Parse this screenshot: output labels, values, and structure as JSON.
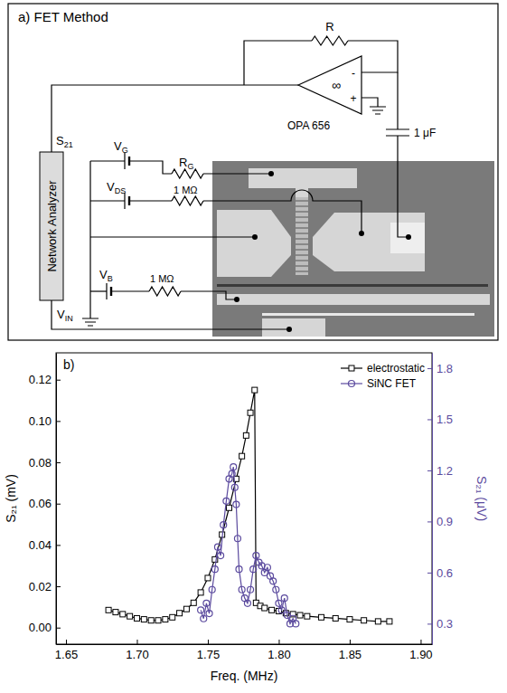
{
  "diagram": {
    "title": "a) FET Method",
    "instrument": "Network Analyzer",
    "amplifier": "OPA 656",
    "feedback_resistor": "R",
    "capacitor": "1 μF",
    "infinity": "∞",
    "inverting_input": "-",
    "noninverting_input": "+",
    "output_label": {
      "main": "S",
      "sub": "21"
    },
    "input_label": {
      "main": "V",
      "sub": "IN"
    },
    "gate_source": {
      "main": "V",
      "sub": "G"
    },
    "gate_resistor": {
      "main": "R",
      "sub": "G"
    },
    "drain_source": {
      "main": "V",
      "sub": "DS"
    },
    "drain_resistor": "1 MΩ",
    "bias_source": {
      "main": "V",
      "sub": "B"
    },
    "bias_resistor": "1 MΩ"
  },
  "chart_data": {
    "type": "line",
    "title": "b)",
    "x_label": "Freq. (MHz)",
    "y_label": "S₂₁ (mV)",
    "y2_label": "S₂₁ (μV)",
    "xlim": [
      1.643,
      1.908
    ],
    "xticks": [
      1.65,
      {
        "value": 1.7,
        "label": "1.70"
      },
      1.75,
      {
        "value": 1.8,
        "label": "1.80"
      },
      1.85,
      {
        "value": 1.9,
        "label": "1.90"
      }
    ],
    "ylim": [
      -0.008,
      0.133
    ],
    "yticks": [
      {
        "value": 0,
        "label": "0.00"
      },
      0.02,
      0.04,
      0.06,
      0.08,
      {
        "value": 0.1,
        "label": "0.10"
      },
      0.12
    ],
    "y2lim": [
      0.18,
      1.89
    ],
    "y2ticks": [
      0.3,
      0.6,
      0.9,
      1.2,
      1.5,
      1.8
    ],
    "legend": "upper right",
    "series": [
      {
        "name": "electrostatic",
        "color": "#000000",
        "marker": "square",
        "x": [
          1.68,
          1.685,
          1.69,
          1.695,
          1.7,
          1.705,
          1.71,
          1.715,
          1.72,
          1.725,
          1.73,
          1.735,
          1.74,
          1.745,
          1.75,
          1.755,
          1.76,
          1.765,
          1.77,
          1.774,
          1.777,
          1.78,
          1.783,
          1.784,
          1.787,
          1.79,
          1.795,
          1.8,
          1.805,
          1.81,
          1.815,
          1.82,
          1.83,
          1.84,
          1.85,
          1.86,
          1.87,
          1.878
        ],
        "values": [
          0.0085,
          0.0075,
          0.0065,
          0.0055,
          0.0045,
          0.004,
          0.0035,
          0.0035,
          0.004,
          0.005,
          0.007,
          0.009,
          0.012,
          0.017,
          0.024,
          0.033,
          0.045,
          0.058,
          0.072,
          0.083,
          0.093,
          0.104,
          0.115,
          0.012,
          0.0105,
          0.0095,
          0.0085,
          0.008,
          0.007,
          0.0065,
          0.006,
          0.0055,
          0.005,
          0.0045,
          0.004,
          0.0035,
          0.003,
          0.003
        ]
      },
      {
        "name": "SiNC FET",
        "color": "#5b4a9e",
        "marker": "circle",
        "axis": "y2",
        "x": [
          1.745,
          1.747,
          1.749,
          1.751,
          1.753,
          1.755,
          1.757,
          1.759,
          1.761,
          1.763,
          1.765,
          1.767,
          1.768,
          1.769,
          1.77,
          1.771,
          1.772,
          1.774,
          1.776,
          1.778,
          1.78,
          1.782,
          1.784,
          1.786,
          1.788,
          1.79,
          1.792,
          1.794,
          1.796,
          1.798,
          1.8,
          1.802,
          1.804,
          1.806,
          1.808,
          1.81,
          1.812
        ],
        "values": [
          0.38,
          0.33,
          0.42,
          0.36,
          0.5,
          0.62,
          0.75,
          0.7,
          0.88,
          1.02,
          1.15,
          1.18,
          1.22,
          1.1,
          1.0,
          0.8,
          0.62,
          0.5,
          0.45,
          0.42,
          0.5,
          0.62,
          0.7,
          0.66,
          0.64,
          0.6,
          0.63,
          0.58,
          0.55,
          0.5,
          0.42,
          0.38,
          0.45,
          0.35,
          0.3,
          0.33,
          0.3
        ]
      }
    ]
  }
}
